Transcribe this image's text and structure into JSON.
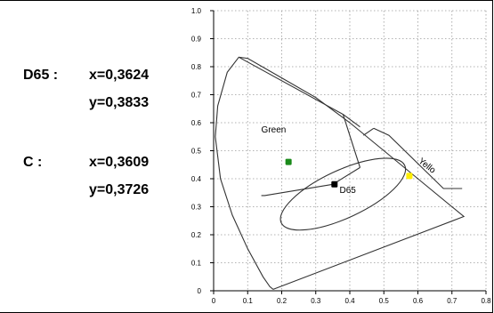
{
  "coords": {
    "d65_name": "D65 :",
    "d65_x": "x=0,3624",
    "d65_y": "y=0,3833",
    "c_name": "C  :",
    "c_x": "x=0,3609",
    "c_y": "y=0,3726"
  },
  "chart_data": {
    "type": "scatter",
    "title": "",
    "xlabel": "",
    "ylabel": "",
    "xlim": [
      0,
      0.8
    ],
    "ylim": [
      0,
      1.0
    ],
    "x_ticks": [
      "0",
      "0.1",
      "0.2",
      "0.3",
      "0.4",
      "0.5",
      "0.6",
      "0.7",
      "0.8"
    ],
    "y_ticks": [
      "0",
      "0.1",
      "0.2",
      "0.3",
      "0.4",
      "0.5",
      "0.6",
      "0.7",
      "0.8",
      "0.9",
      "1.0"
    ],
    "grid": true,
    "points": [
      {
        "label": "",
        "x": 0.22,
        "y": 0.46,
        "color": "#1a8a1a"
      },
      {
        "label": "",
        "x": 0.355,
        "y": 0.38,
        "color": "#000000"
      },
      {
        "label": "",
        "x": 0.575,
        "y": 0.41,
        "color": "#ffee00"
      }
    ],
    "annotations": [
      {
        "text": "Green",
        "x": 0.14,
        "y": 0.565
      },
      {
        "text": "D65",
        "x": 0.37,
        "y": 0.35
      },
      {
        "text": "Yello",
        "x": 0.6,
        "y": 0.46
      }
    ],
    "spectral_locus": [
      [
        0.175,
        0.005
      ],
      [
        0.165,
        0.015
      ],
      [
        0.145,
        0.05
      ],
      [
        0.1,
        0.15
      ],
      [
        0.055,
        0.27
      ],
      [
        0.02,
        0.4
      ],
      [
        0.005,
        0.55
      ],
      [
        0.012,
        0.66
      ],
      [
        0.04,
        0.78
      ],
      [
        0.074,
        0.834
      ],
      [
        0.1,
        0.83
      ],
      [
        0.2,
        0.76
      ],
      [
        0.3,
        0.69
      ],
      [
        0.4,
        0.6
      ],
      [
        0.5,
        0.5
      ],
      [
        0.6,
        0.4
      ],
      [
        0.735,
        0.265
      ],
      [
        0.175,
        0.005
      ]
    ],
    "region_lines": [
      [
        [
          0.074,
          0.834
        ],
        [
          0.38,
          0.63
        ],
        [
          0.43,
          0.585
        ]
      ],
      [
        [
          0.38,
          0.63
        ],
        [
          0.43,
          0.44
        ]
      ],
      [
        [
          0.43,
          0.44
        ],
        [
          0.35,
          0.38
        ]
      ],
      [
        [
          0.35,
          0.38
        ],
        [
          0.15,
          0.34
        ],
        [
          0.14,
          0.34
        ]
      ],
      [
        [
          0.47,
          0.58
        ],
        [
          0.515,
          0.555
        ],
        [
          0.675,
          0.365
        ],
        [
          0.73,
          0.365
        ]
      ],
      [
        [
          0.47,
          0.58
        ],
        [
          0.44,
          0.555
        ]
      ]
    ],
    "ellipse": {
      "cx": 0.38,
      "cy": 0.345,
      "rx": 0.2,
      "ry": 0.085,
      "angle_deg": 25
    }
  }
}
